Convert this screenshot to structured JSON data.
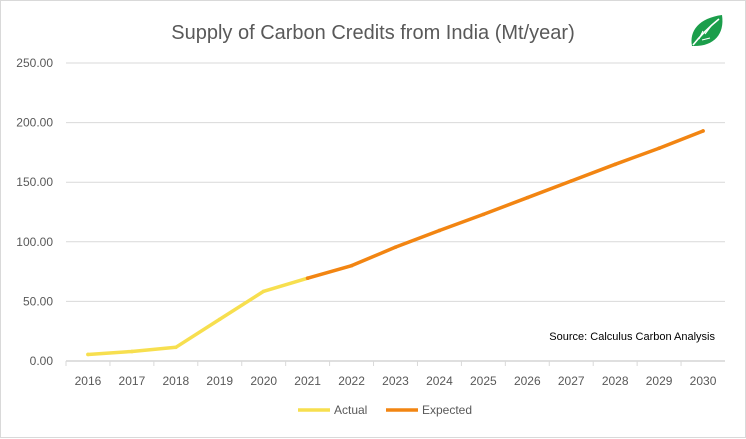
{
  "chart_data": {
    "type": "line",
    "title": "Supply of Carbon Credits from India (Mt/year)",
    "xlabel": "",
    "ylabel": "",
    "ylim": [
      0,
      250
    ],
    "y_ticks": [
      "0.00",
      "50.00",
      "100.00",
      "150.00",
      "200.00",
      "250.00"
    ],
    "categories": [
      "2016",
      "2017",
      "2018",
      "2019",
      "2020",
      "2021",
      "2022",
      "2023",
      "2024",
      "2025",
      "2026",
      "2027",
      "2028",
      "2029",
      "2030"
    ],
    "series": [
      {
        "name": "Actual",
        "color": "#f7df4f",
        "values": [
          5.5,
          8,
          11.5,
          35,
          58.5,
          69.5,
          null,
          null,
          null,
          null,
          null,
          null,
          null,
          null,
          null
        ]
      },
      {
        "name": "Expected",
        "color": "#f28512",
        "values": [
          null,
          null,
          null,
          null,
          null,
          69.5,
          80,
          95.5,
          109.5,
          123,
          137,
          151,
          165,
          178.5,
          193
        ]
      }
    ],
    "annotation": "Source: Calculus Carbon Analysis",
    "legend_position": "bottom"
  },
  "logo": {
    "name": "leaf-logo",
    "color": "#1b9e4b"
  }
}
